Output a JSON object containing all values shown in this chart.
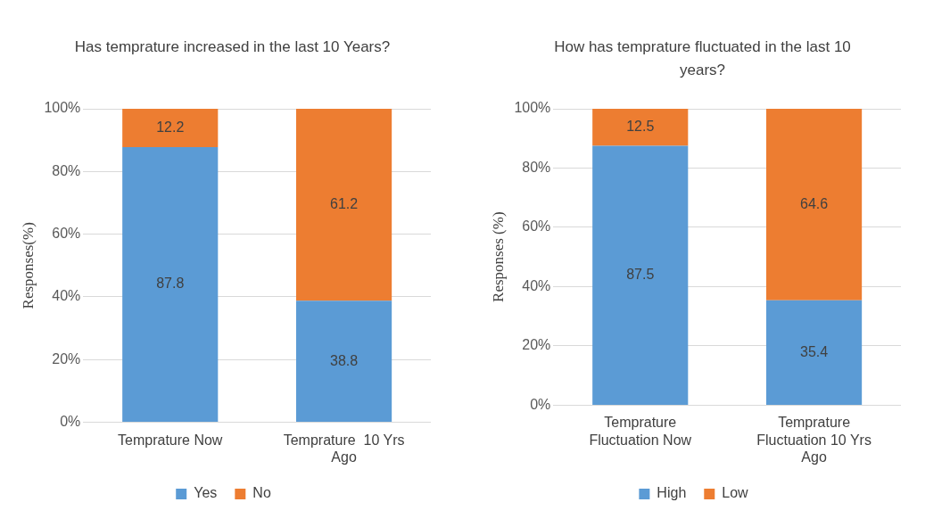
{
  "chart_data": [
    {
      "type": "bar",
      "title": "Has temprature increased in the last 10 Years?",
      "ylabel": "Responses(%)",
      "categories": [
        "Temprature Now",
        "Temprature  10 Yrs Ago"
      ],
      "stacked": true,
      "series": [
        {
          "name": "Yes",
          "color": "#5b9bd5",
          "values": [
            87.8,
            38.8
          ]
        },
        {
          "name": "No",
          "color": "#ed7d31",
          "values": [
            12.2,
            61.2
          ]
        }
      ],
      "ylim": [
        0,
        100
      ],
      "yticks": [
        {
          "value": 0,
          "label": "0%"
        },
        {
          "value": 20,
          "label": "20%"
        },
        {
          "value": 40,
          "label": "40%"
        },
        {
          "value": 60,
          "label": "60%"
        },
        {
          "value": 80,
          "label": "80%"
        },
        {
          "value": 100,
          "label": "100%"
        }
      ],
      "grid": "y",
      "legend": "bottom",
      "data_labels": true
    },
    {
      "type": "bar",
      "title": "How has temprature fluctuated in the last 10 years?",
      "ylabel": "Responses (%)",
      "categories": [
        "Temprature Fluctuation Now",
        "Temprature Fluctuation 10 Yrs Ago"
      ],
      "stacked": true,
      "series": [
        {
          "name": "High",
          "color": "#5b9bd5",
          "values": [
            87.5,
            35.4
          ]
        },
        {
          "name": "Low",
          "color": "#ed7d31",
          "values": [
            12.5,
            64.6
          ]
        }
      ],
      "ylim": [
        0,
        100
      ],
      "yticks": [
        {
          "value": 0,
          "label": "0%"
        },
        {
          "value": 20,
          "label": "20%"
        },
        {
          "value": 40,
          "label": "40%"
        },
        {
          "value": 60,
          "label": "60%"
        },
        {
          "value": 80,
          "label": "80%"
        },
        {
          "value": 100,
          "label": "100%"
        }
      ],
      "grid": "y",
      "legend": "bottom",
      "data_labels": true
    }
  ]
}
